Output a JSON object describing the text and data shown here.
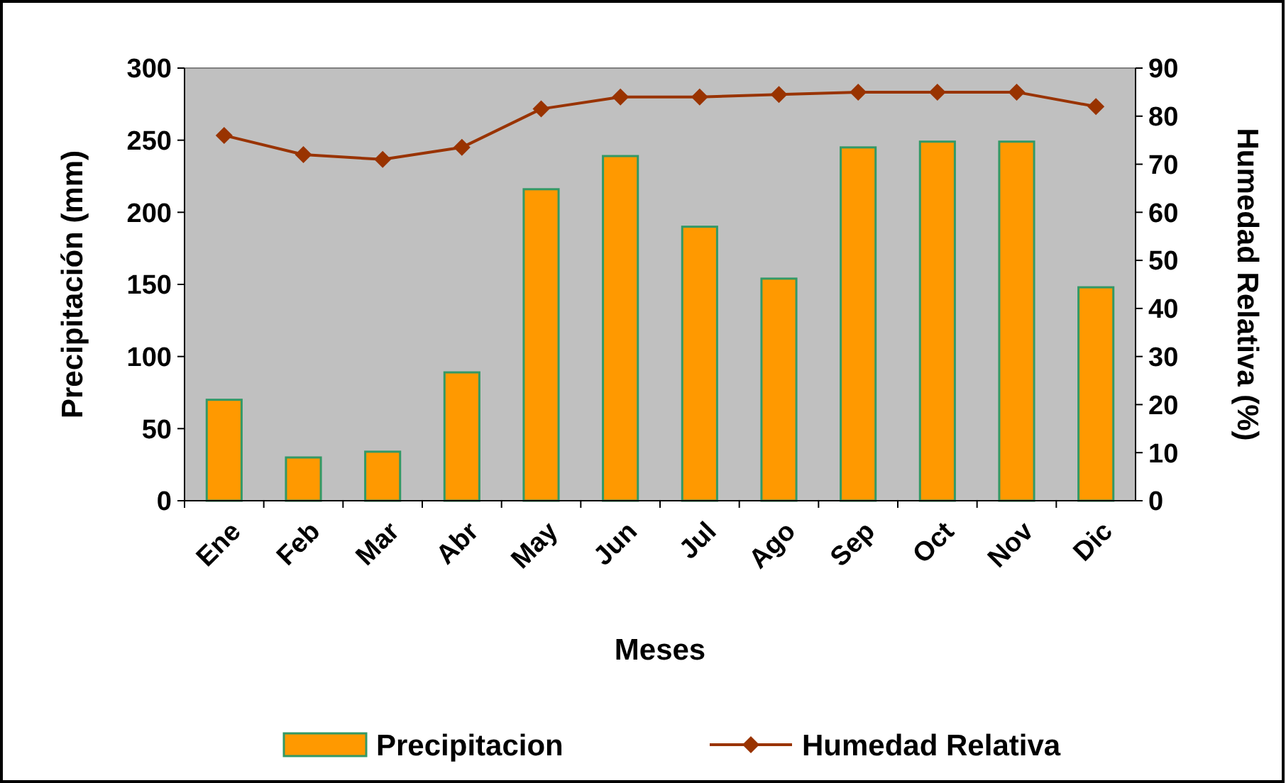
{
  "chart_data": {
    "type": "bar",
    "xlabel": "Meses",
    "ylabel": "Precipitación (mm)",
    "y2label": "Humedad Relativa (%)",
    "categories": [
      "Ene",
      "Feb",
      "Mar",
      "Abr",
      "May",
      "Jun",
      "Jul",
      "Ago",
      "Sep",
      "Oct",
      "Nov",
      "Dic"
    ],
    "series": [
      {
        "name": "Precipitacion",
        "color": "#ff9900",
        "values": [
          70,
          30,
          34,
          89,
          216,
          239,
          190,
          154,
          245,
          249,
          249,
          148
        ]
      },
      {
        "name": "Humedad Relativa",
        "type": "line",
        "axis": "y2",
        "color": "#993300",
        "marker": "diamond",
        "values": [
          76,
          72,
          71,
          73.5,
          81.5,
          84,
          84,
          84.5,
          85,
          85,
          85,
          82
        ]
      }
    ],
    "ylim": [
      0,
      300
    ],
    "yticks": [
      0,
      50,
      100,
      150,
      200,
      250,
      300
    ],
    "y2lim": [
      0,
      90
    ],
    "y2ticks": [
      0,
      10,
      20,
      30,
      40,
      50,
      60,
      70,
      80,
      90
    ],
    "grid": false,
    "legend": "bottom"
  }
}
